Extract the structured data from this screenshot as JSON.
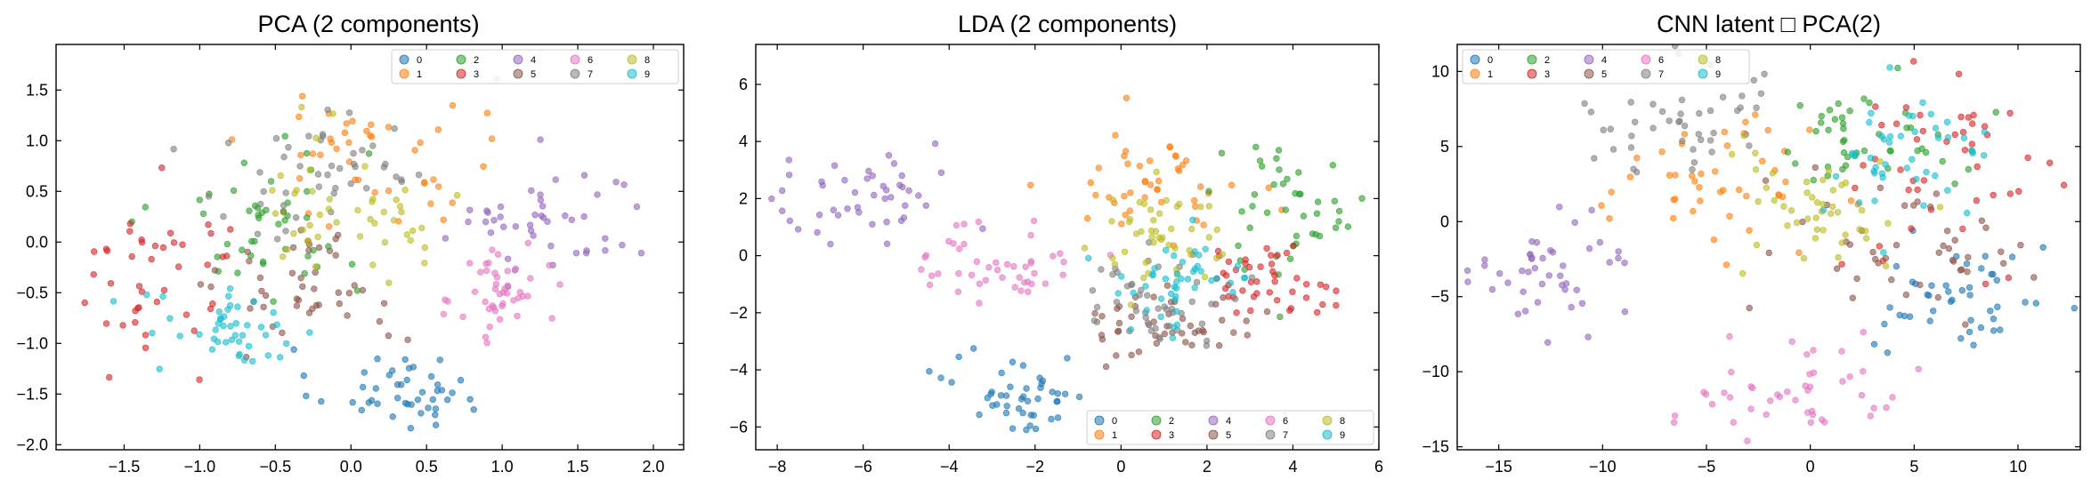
{
  "figure": {
    "panels": [
      {
        "id": "pca",
        "title": "PCA (2 components)"
      },
      {
        "id": "lda",
        "title": "LDA (2 components)"
      },
      {
        "id": "cnn",
        "title": "CNN latent □ PCA(2)"
      }
    ]
  },
  "colors": [
    "#1f77b4",
    "#ff7f0e",
    "#2ca02c",
    "#d62728",
    "#9467bd",
    "#8c564b",
    "#e377c2",
    "#7f7f7f",
    "#bcbd22",
    "#17becf"
  ],
  "chart_data": [
    {
      "type": "scatter",
      "title": "PCA (2 components)",
      "xlabel": "",
      "ylabel": "",
      "xlim": [
        -1.95,
        2.2
      ],
      "ylim": [
        -2.05,
        1.95
      ],
      "xticks": [
        -1.5,
        -1.0,
        -0.5,
        0.0,
        0.5,
        1.0,
        1.5,
        2.0
      ],
      "xtick_labels": [
        "−1.5",
        "−1.0",
        "−0.5",
        "0.0",
        "0.5",
        "1.0",
        "1.5",
        "2.0"
      ],
      "yticks": [
        -2.0,
        -1.5,
        -1.0,
        -0.5,
        0.0,
        0.5,
        1.0,
        1.5
      ],
      "ytick_labels": [
        "−2.0",
        "−1.5",
        "−1.0",
        "−0.5",
        "0.0",
        "0.5",
        "1.0",
        "1.5"
      ],
      "grid": false,
      "legend": {
        "position": "top-right",
        "entries": [
          "0",
          "1",
          "2",
          "3",
          "4",
          "5",
          "6",
          "7",
          "8",
          "9"
        ]
      },
      "clusters": [
        {
          "class": "0",
          "center": [
            0.3,
            -1.45
          ],
          "spread": [
            0.28,
            0.2
          ],
          "count": 45
        },
        {
          "class": "1",
          "center": [
            0.15,
            0.85
          ],
          "spread": [
            0.4,
            0.45
          ],
          "count": 45
        },
        {
          "class": "2",
          "center": [
            -0.6,
            0.25
          ],
          "spread": [
            0.35,
            0.4
          ],
          "count": 45
        },
        {
          "class": "3",
          "center": [
            -1.25,
            -0.3
          ],
          "spread": [
            0.3,
            0.4
          ],
          "count": 45
        },
        {
          "class": "4",
          "center": [
            1.3,
            0.2
          ],
          "spread": [
            0.35,
            0.3
          ],
          "count": 45
        },
        {
          "class": "5",
          "center": [
            -0.25,
            -0.45
          ],
          "spread": [
            0.3,
            0.3
          ],
          "count": 45
        },
        {
          "class": "6",
          "center": [
            1.0,
            -0.5
          ],
          "spread": [
            0.15,
            0.25
          ],
          "count": 45
        },
        {
          "class": "7",
          "center": [
            -0.2,
            0.65
          ],
          "spread": [
            0.4,
            0.35
          ],
          "count": 45
        },
        {
          "class": "8",
          "center": [
            0.05,
            0.35
          ],
          "spread": [
            0.35,
            0.35
          ],
          "count": 45
        },
        {
          "class": "9",
          "center": [
            -0.8,
            -0.9
          ],
          "spread": [
            0.3,
            0.2
          ],
          "count": 45
        }
      ]
    },
    {
      "type": "scatter",
      "title": "LDA (2 components)",
      "xlabel": "",
      "ylabel": "",
      "xlim": [
        -8.5,
        6.0
      ],
      "ylim": [
        -6.8,
        7.4
      ],
      "xticks": [
        -8,
        -6,
        -4,
        -2,
        0,
        2,
        4,
        6
      ],
      "xtick_labels": [
        "−8",
        "−6",
        "−4",
        "−2",
        "0",
        "2",
        "4",
        "6"
      ],
      "yticks": [
        -6,
        -4,
        -2,
        0,
        2,
        4,
        6
      ],
      "ytick_labels": [
        "−6",
        "−4",
        "−2",
        "0",
        "2",
        "4",
        "6"
      ],
      "grid": false,
      "legend": {
        "position": "bottom-right",
        "entries": [
          "0",
          "1",
          "2",
          "3",
          "4",
          "5",
          "6",
          "7",
          "8",
          "9"
        ]
      },
      "clusters": [
        {
          "class": "0",
          "center": [
            -2.3,
            -4.8
          ],
          "spread": [
            0.8,
            0.7
          ],
          "count": 45
        },
        {
          "class": "1",
          "center": [
            0.8,
            2.5
          ],
          "spread": [
            1.0,
            1.0
          ],
          "count": 45
        },
        {
          "class": "2",
          "center": [
            3.9,
            1.8
          ],
          "spread": [
            1.0,
            1.2
          ],
          "count": 45
        },
        {
          "class": "3",
          "center": [
            3.3,
            -0.8
          ],
          "spread": [
            0.8,
            0.6
          ],
          "count": 45
        },
        {
          "class": "4",
          "center": [
            -6.0,
            1.9
          ],
          "spread": [
            1.2,
            0.8
          ],
          "count": 45
        },
        {
          "class": "5",
          "center": [
            1.2,
            -2.4
          ],
          "spread": [
            1.0,
            0.6
          ],
          "count": 45
        },
        {
          "class": "6",
          "center": [
            -2.8,
            -0.2
          ],
          "spread": [
            0.9,
            0.8
          ],
          "count": 45
        },
        {
          "class": "7",
          "center": [
            0.8,
            -1.6
          ],
          "spread": [
            1.0,
            0.8
          ],
          "count": 45
        },
        {
          "class": "8",
          "center": [
            1.0,
            0.8
          ],
          "spread": [
            0.8,
            0.9
          ],
          "count": 45
        },
        {
          "class": "9",
          "center": [
            1.3,
            -1.0
          ],
          "spread": [
            1.0,
            0.8
          ],
          "count": 45
        }
      ]
    },
    {
      "type": "scatter",
      "title": "CNN latent □ PCA(2)",
      "xlabel": "",
      "ylabel": "",
      "xlim": [
        -17.0,
        13.0
      ],
      "ylim": [
        -15.2,
        11.8
      ],
      "xticks": [
        -15,
        -10,
        -5,
        0,
        5,
        10
      ],
      "xtick_labels": [
        "−15",
        "−10",
        "−5",
        "0",
        "5",
        "10"
      ],
      "yticks": [
        -15,
        -10,
        -5,
        0,
        5,
        10
      ],
      "ytick_labels": [
        "−15",
        "−10",
        "−5",
        "0",
        "5",
        "10"
      ],
      "grid": false,
      "legend": {
        "position": "top-left",
        "entries": [
          "0",
          "1",
          "2",
          "3",
          "4",
          "5",
          "6",
          "7",
          "8",
          "9"
        ]
      },
      "clusters": [
        {
          "class": "0",
          "center": [
            7.5,
            -5.5
          ],
          "spread": [
            2.0,
            2.0
          ],
          "count": 45
        },
        {
          "class": "1",
          "center": [
            -5.0,
            2.5
          ],
          "spread": [
            2.5,
            2.0
          ],
          "count": 45
        },
        {
          "class": "2",
          "center": [
            2.5,
            5.5
          ],
          "spread": [
            2.5,
            2.0
          ],
          "count": 45
        },
        {
          "class": "3",
          "center": [
            7.0,
            4.0
          ],
          "spread": [
            2.5,
            3.0
          ],
          "count": 45
        },
        {
          "class": "4",
          "center": [
            -12.5,
            -3.5
          ],
          "spread": [
            1.8,
            2.0
          ],
          "count": 45
        },
        {
          "class": "5",
          "center": [
            4.5,
            -1.5
          ],
          "spread": [
            3.0,
            2.5
          ],
          "count": 45
        },
        {
          "class": "6",
          "center": [
            -0.5,
            -11.0
          ],
          "spread": [
            3.0,
            1.5
          ],
          "count": 45
        },
        {
          "class": "7",
          "center": [
            -6.0,
            6.5
          ],
          "spread": [
            2.5,
            2.0
          ],
          "count": 45
        },
        {
          "class": "8",
          "center": [
            0.5,
            1.0
          ],
          "spread": [
            2.2,
            2.2
          ],
          "count": 45
        },
        {
          "class": "9",
          "center": [
            4.5,
            4.0
          ],
          "spread": [
            2.0,
            2.0
          ],
          "count": 45
        }
      ]
    }
  ]
}
